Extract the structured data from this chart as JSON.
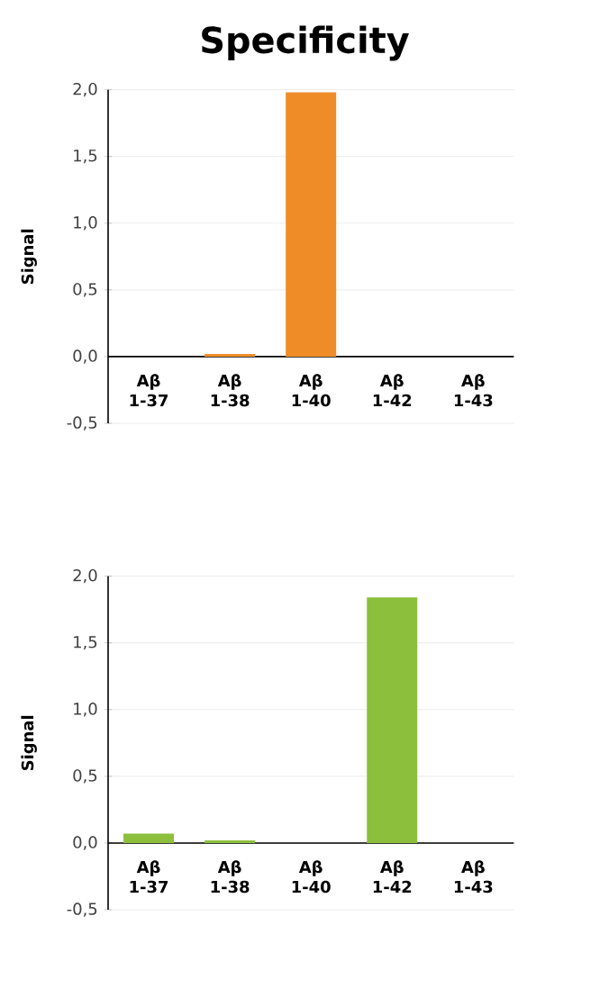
{
  "chart_data": [
    {
      "type": "bar",
      "title": "Specificity",
      "ylabel": "Signal",
      "categories": [
        "Aβ 1-37",
        "Aβ 1-38",
        "Aβ 1-40",
        "Aβ 1-42",
        "Aβ 1-43"
      ],
      "values": [
        0,
        0.02,
        1.98,
        0,
        0
      ],
      "color": "#f08c28",
      "ylim": [
        -0.5,
        2.0
      ],
      "yticks": [
        {
          "value": -0.5,
          "label": "-0,5"
        },
        {
          "value": 0,
          "label": "0,0"
        },
        {
          "value": 0.5,
          "label": "0,5"
        },
        {
          "value": 1.0,
          "label": "1,0"
        },
        {
          "value": 1.5,
          "label": "1,5"
        },
        {
          "value": 2.0,
          "label": "2,0"
        }
      ],
      "grid": "y"
    },
    {
      "type": "bar",
      "ylabel": "Signal",
      "categories": [
        "Aβ 1-37",
        "Aβ 1-38",
        "Aβ 1-40",
        "Aβ 1-42",
        "Aβ 1-43"
      ],
      "values": [
        0.07,
        0.02,
        0,
        1.84,
        0
      ],
      "color": "#8cbf3c",
      "ylim": [
        -0.5,
        2.0
      ],
      "yticks": [
        {
          "value": -0.5,
          "label": "-0,5"
        },
        {
          "value": 0,
          "label": "0,0"
        },
        {
          "value": 0.5,
          "label": "0,5"
        },
        {
          "value": 1.0,
          "label": "1,0"
        },
        {
          "value": 1.5,
          "label": "1,5"
        },
        {
          "value": 2.0,
          "label": "2,0"
        }
      ],
      "grid": "y"
    }
  ]
}
